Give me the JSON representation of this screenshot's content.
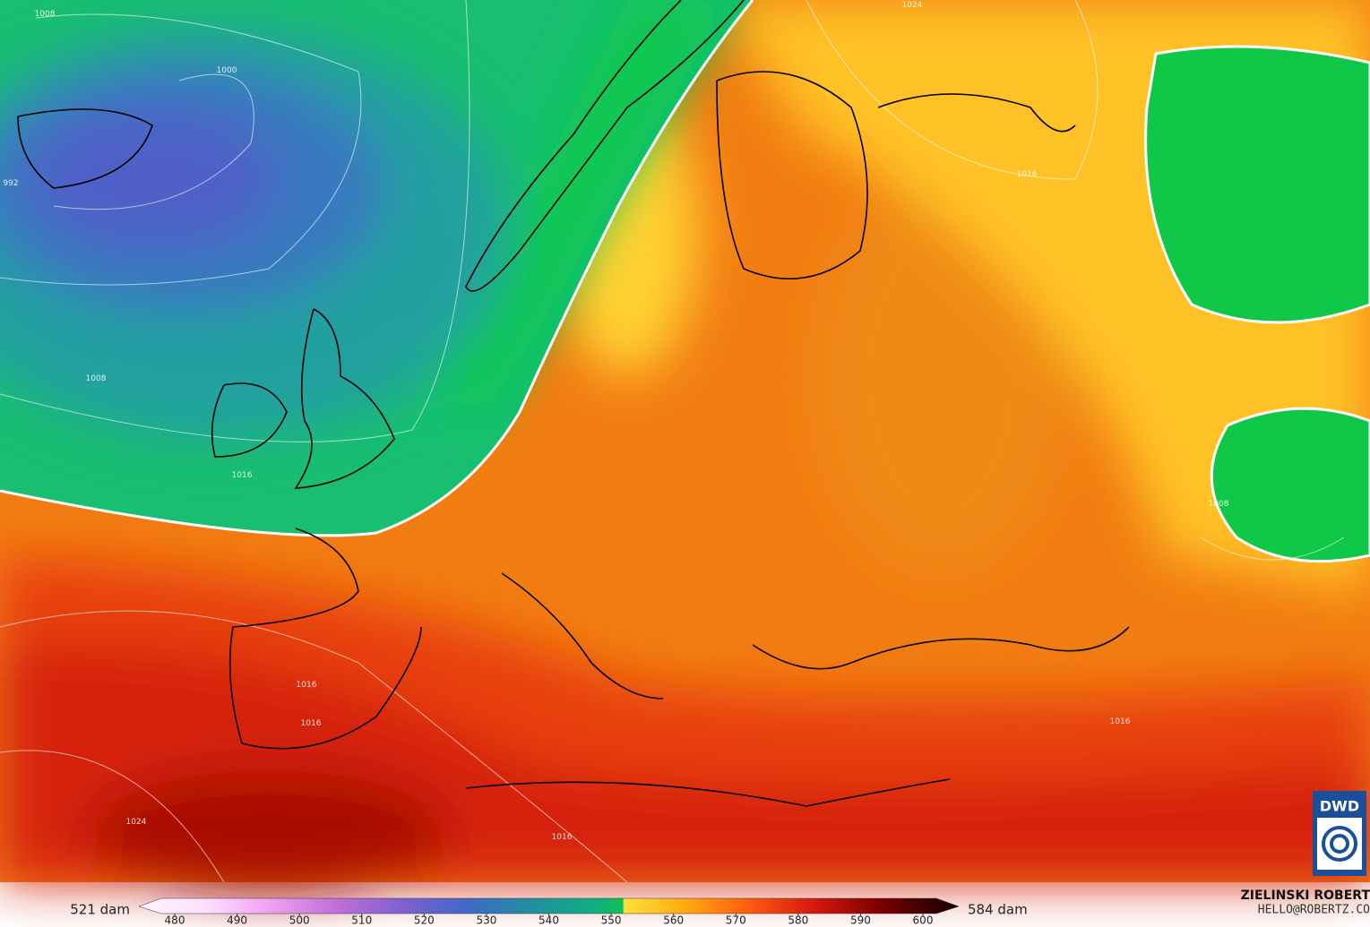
{
  "map": {
    "isobar_labels": [
      "1008",
      "1000",
      "992",
      "1008",
      "1016",
      "1024",
      "1016",
      "1008",
      "1016",
      "1016",
      "1024",
      "1016",
      "1016"
    ]
  },
  "legend": {
    "min_label": "521 dam",
    "max_label": "584 dam",
    "ticks": [
      480,
      490,
      500,
      510,
      520,
      530,
      540,
      550,
      560,
      570,
      580,
      590,
      600
    ]
  },
  "credit": {
    "name": "ZIELINSKI ROBERT",
    "email": "HELLO@ROBERTZ.CO"
  },
  "logo": "DWD"
}
